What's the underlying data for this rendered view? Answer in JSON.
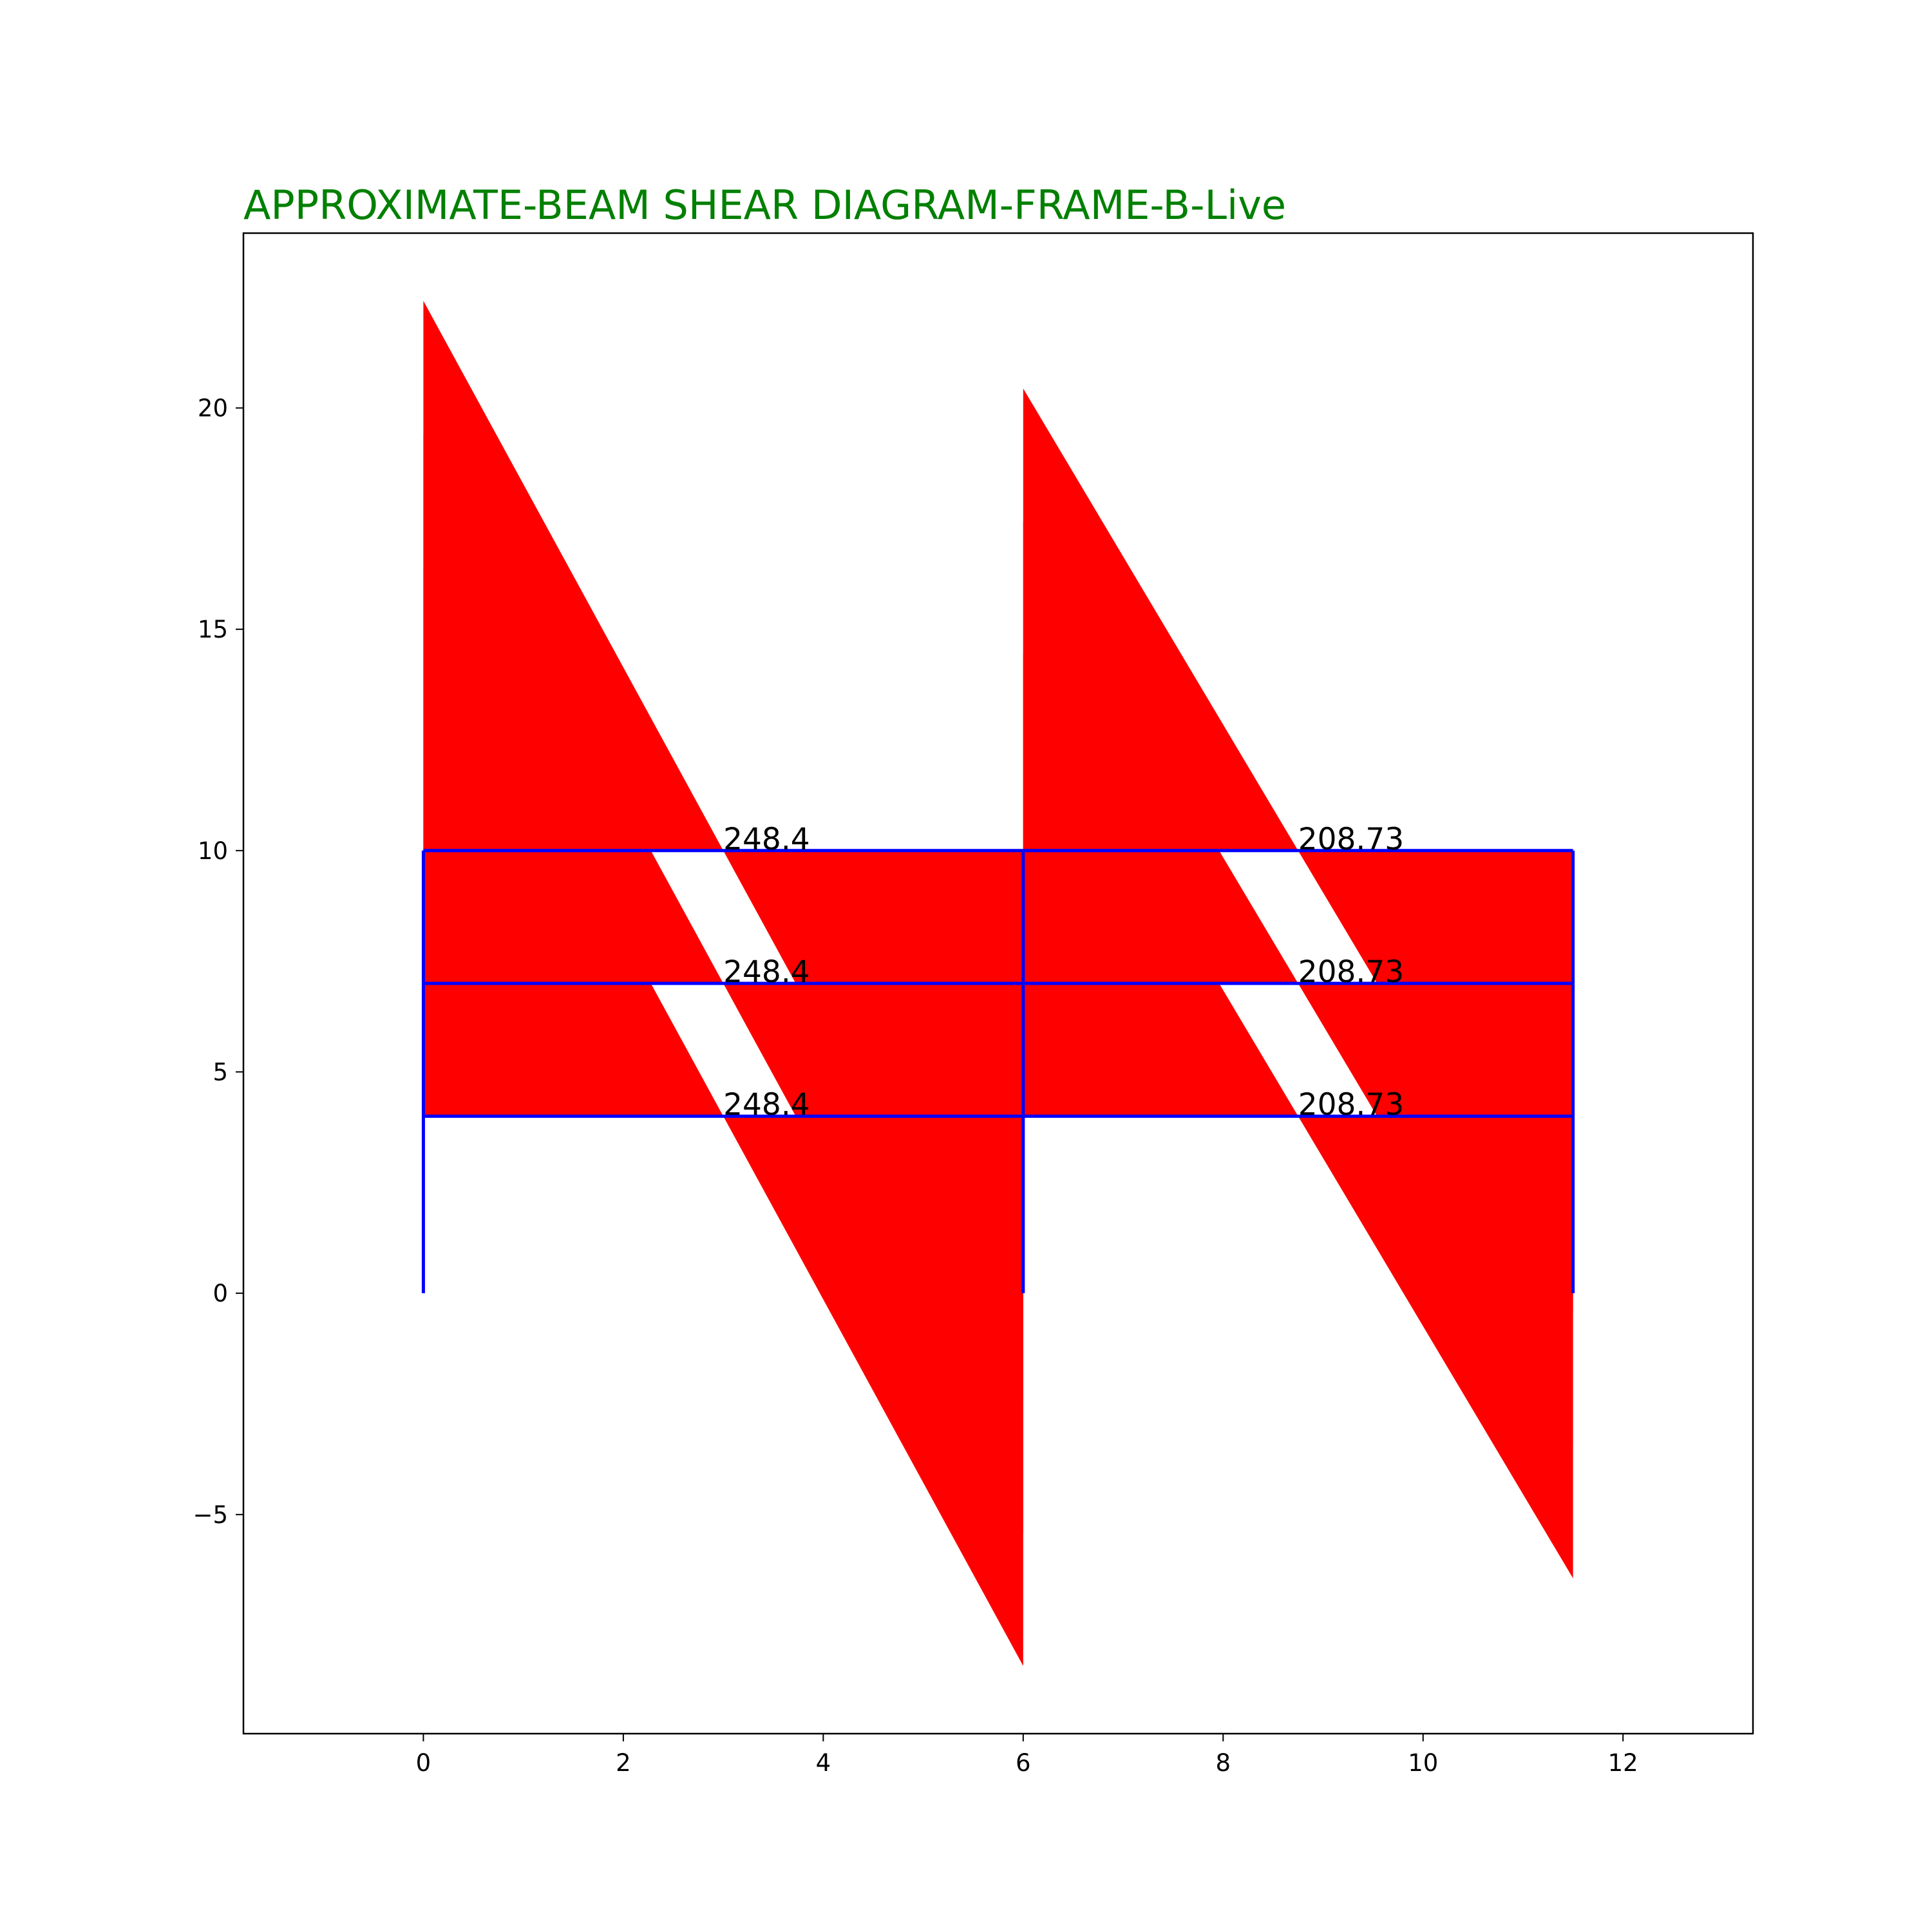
{
  "chart_data": {
    "type": "area",
    "title": "APPROXIMATE-BEAM SHEAR DIAGRAM-FRAME-B-Live",
    "xlabel": "",
    "ylabel": "",
    "xlim": [
      -1.8,
      13.3
    ],
    "ylim": [
      -9.95,
      23.95
    ],
    "xticks": [
      0,
      2,
      4,
      6,
      8,
      10,
      12
    ],
    "yticks": [
      -5,
      0,
      5,
      10,
      15,
      20
    ],
    "grid": false,
    "legend": "none",
    "colors": {
      "title": "#008000",
      "shear": "#ff0000",
      "frame": "#0000ff",
      "axes": "#000000"
    },
    "floor_levels": [
      4,
      7,
      10
    ],
    "spans": [
      {
        "x_start": 0,
        "x_end": 6,
        "shear_start": 12.42,
        "shear_end": -12.42,
        "label_x": 3,
        "label": "248.4"
      },
      {
        "x_start": 6,
        "x_end": 11.5,
        "shear_start": 10.44,
        "shear_end": -10.44,
        "label_x": 8.75,
        "label": "208.73"
      }
    ],
    "columns": [
      0,
      6,
      11.5
    ],
    "column_base": 0
  }
}
